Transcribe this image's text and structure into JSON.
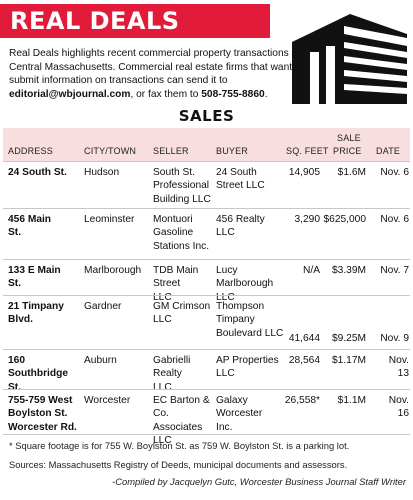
{
  "header": {
    "title": "REAL DEALS"
  },
  "intro": {
    "text_before_email": "Real Deals highlights recent commercial property transactions in Central Massachusetts. Commercial real estate firms that want to submit information on transactions can send it to ",
    "email": "editorial@wbjournal.com",
    "text_after_email": ", or fax them to ",
    "fax": "508-755-8860",
    "end": "."
  },
  "sales_title": "SALES",
  "table": {
    "headers": {
      "address": "ADDRESS",
      "city": "CITY/TOWN",
      "seller": "SELLER",
      "buyer": "BUYER",
      "sqft": "SQ. FEET",
      "price_line1": "SALE",
      "price_line2": "PRICE",
      "date": "DATE"
    },
    "rows": [
      {
        "address": [
          "24 South St."
        ],
        "city": "Hudson",
        "seller": [
          "South St.",
          "Professional",
          "Building LLC"
        ],
        "buyer": [
          "24 South",
          "Street LLC"
        ],
        "sqft": "14,905",
        "price": "$1.6M",
        "date": "Nov. 6"
      },
      {
        "address": [
          "456 Main",
          "St."
        ],
        "city": "Leominster",
        "seller": [
          "Montuori",
          "Gasoline",
          "Stations Inc."
        ],
        "buyer": [
          "456 Realty",
          "LLC"
        ],
        "sqft": "3,290",
        "price": "$625,000",
        "date": "Nov. 6"
      },
      {
        "address": [
          "133 E Main",
          "St."
        ],
        "city": "Marlborough",
        "seller": [
          "TDB Main Street",
          "LLC"
        ],
        "buyer": [
          "Lucy Marlborough",
          "LLC"
        ],
        "sqft": "N/A",
        "price": "$3.39M",
        "date": "Nov. 7"
      },
      {
        "address": [
          "21 Timpany",
          "Blvd."
        ],
        "city": "Gardner",
        "seller": [
          "GM Crimson",
          "LLC"
        ],
        "buyer": [
          "Thompson",
          "Timpany",
          "Boulevard LLC"
        ],
        "sqft": "41,644",
        "price": "$9.25M",
        "date": "Nov. 9"
      },
      {
        "address": [
          "160 Southbridge",
          "St."
        ],
        "city": "Auburn",
        "seller": [
          "Gabrielli Realty",
          "LLC"
        ],
        "buyer": [
          "AP Properties LLC"
        ],
        "sqft": "28,564",
        "price": "$1.17M",
        "date": "Nov. 13"
      },
      {
        "address": [
          "755-759 West",
          "Boylston St.",
          "Worcester Rd."
        ],
        "city": "Worcester",
        "seller": [
          "EC Barton & Co.",
          "Associates LLC"
        ],
        "buyer": [
          "Galaxy Worcester",
          "Inc."
        ],
        "sqft": "26,558*",
        "price": "$1.1M",
        "date": "Nov. 16"
      }
    ]
  },
  "footnotes": {
    "square_footage": "* Square footage is for 755 W. Boylston St. as 759 W. Boylston St. is a parking lot.",
    "sources": "Sources: Massachusetts Registry of Deeds, municipal documents and assessors.",
    "compiled_by": "-Compiled by Jacquelyn Gutc, Worcester Business Journal Staff Writer"
  },
  "colors": {
    "banner_red": "#e31b3b",
    "header_pink": "#f8dede"
  },
  "icons": {
    "building": "building-icon"
  }
}
